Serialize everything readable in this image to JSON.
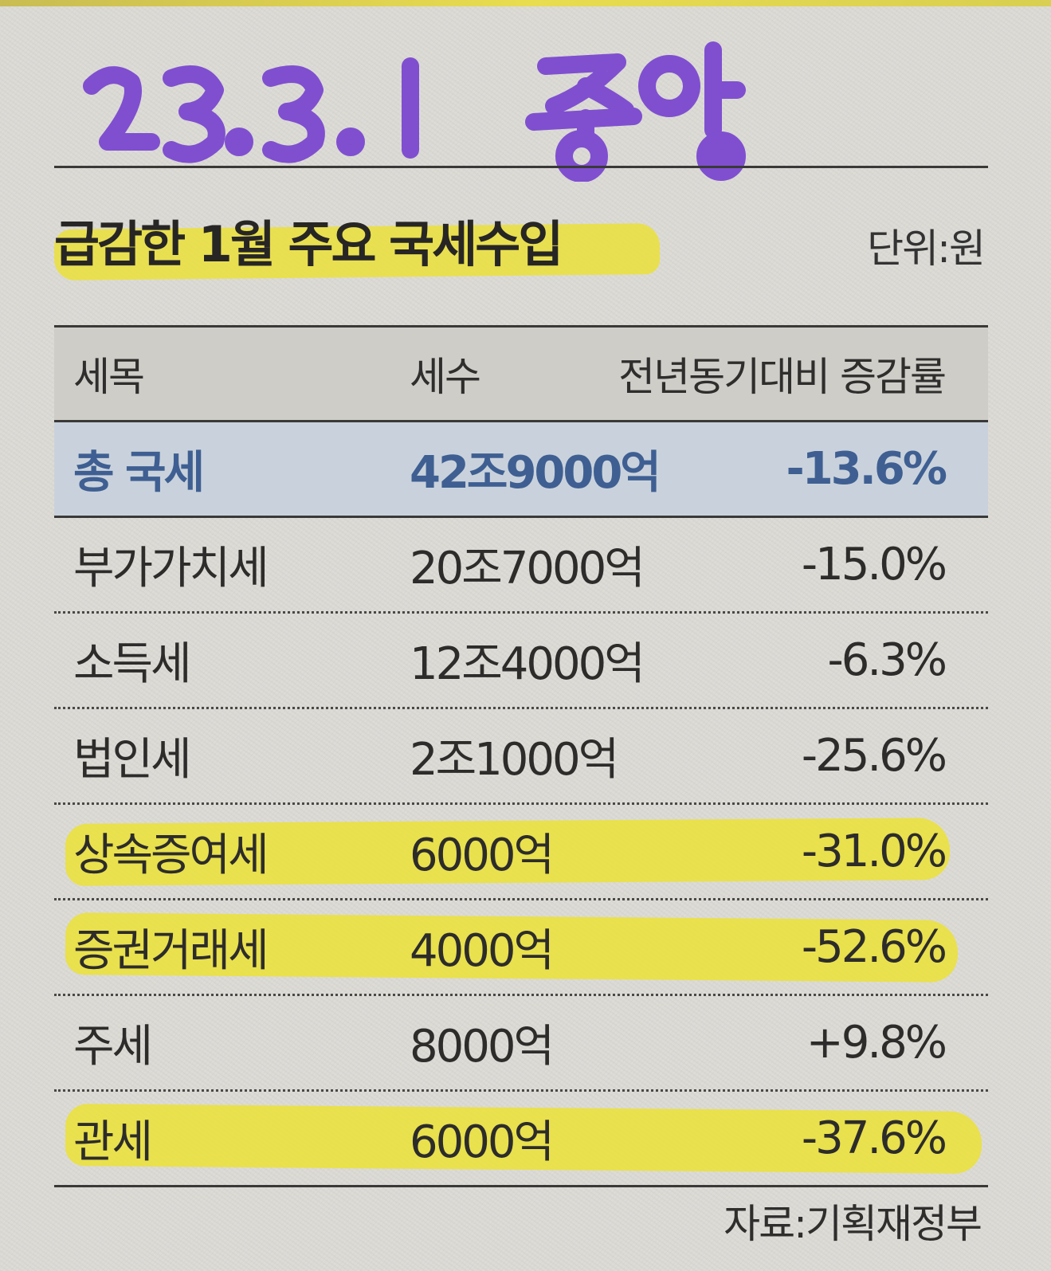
{
  "handwritten_note": "23.3.1 중앙",
  "title": "급감한 1월 주요 국세수입",
  "unit": "단위:원",
  "columns": {
    "name": "세목",
    "revenue": "세수",
    "rate": "전년동기대비 증감률"
  },
  "rows": [
    {
      "name": "총 국세",
      "revenue": "42조9000억",
      "rate": "-13.6%",
      "style": "total"
    },
    {
      "name": "부가가치세",
      "revenue": "20조7000억",
      "rate": "-15.0%"
    },
    {
      "name": "소득세",
      "revenue": "12조4000억",
      "rate": "-6.3%"
    },
    {
      "name": "법인세",
      "revenue": "2조1000억",
      "rate": "-25.6%"
    },
    {
      "name": "상속증여세",
      "revenue": "6000억",
      "rate": "-31.0%",
      "highlighted": true
    },
    {
      "name": "증권거래세",
      "revenue": "4000억",
      "rate": "-52.6%",
      "highlighted": true
    },
    {
      "name": "주세",
      "revenue": "8000억",
      "rate": "+9.8%"
    },
    {
      "name": "관세",
      "revenue": "6000억",
      "rate": "-37.6%",
      "highlighted": true
    }
  ],
  "source": "자료:기획재정부",
  "colors": {
    "highlighter": "#ebe13a",
    "handwriting": "#7f4fd0",
    "total_row_bg": "#c9d2dc",
    "total_row_text": "#3f5f92"
  }
}
